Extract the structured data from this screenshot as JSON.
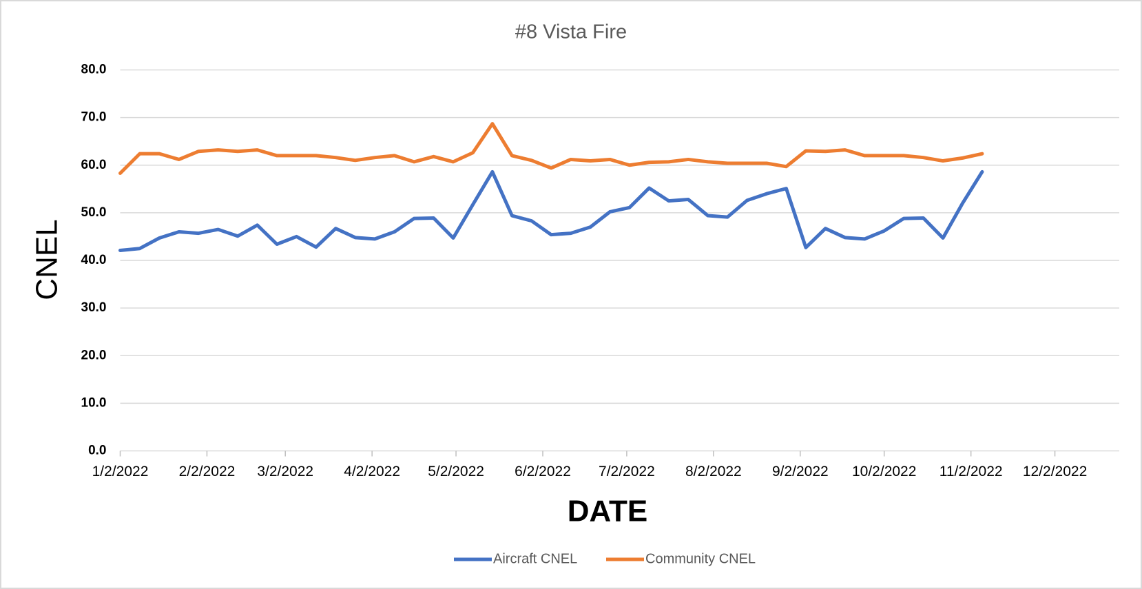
{
  "chart_data": {
    "type": "line",
    "title": "#8 Vista Fire",
    "x_label": "DATE",
    "y_label": "CNEL",
    "x": [
      "2022-01-02",
      "2022-01-09",
      "2022-01-16",
      "2022-01-23",
      "2022-01-30",
      "2022-02-06",
      "2022-02-13",
      "2022-02-20",
      "2022-02-27",
      "2022-03-06",
      "2022-03-13",
      "2022-03-20",
      "2022-03-27",
      "2022-04-03",
      "2022-04-10",
      "2022-04-17",
      "2022-04-24",
      "2022-05-01",
      "2022-05-08",
      "2022-05-15",
      "2022-05-22",
      "2022-05-29",
      "2022-06-05",
      "2022-06-12",
      "2022-06-19",
      "2022-06-26",
      "2022-07-03",
      "2022-07-10",
      "2022-07-17",
      "2022-07-24",
      "2022-07-31",
      "2022-08-07",
      "2022-08-14",
      "2022-08-21",
      "2022-08-28",
      "2022-09-04",
      "2022-09-11",
      "2022-09-18",
      "2022-09-25",
      "2022-10-02",
      "2022-10-09",
      "2022-10-16",
      "2022-10-23",
      "2022-10-30",
      "2022-11-06"
    ],
    "series": [
      {
        "name": "Aircraft CNEL",
        "color": "#4472c4",
        "values": [
          42.1,
          42.5,
          44.7,
          46.0,
          45.7,
          46.5,
          45.1,
          47.4,
          43.4,
          45.0,
          42.8,
          46.7,
          44.8,
          44.5,
          46.0,
          48.8,
          48.9,
          44.7,
          51.7,
          58.6,
          49.4,
          48.3,
          45.4,
          45.7,
          47.0,
          50.2,
          51.1,
          55.2,
          52.5,
          52.8,
          49.4,
          49.1,
          52.6,
          54.0,
          55.1,
          42.7,
          46.7,
          44.8,
          44.5,
          46.2,
          48.8,
          48.9,
          44.7,
          52.0,
          58.6
        ]
      },
      {
        "name": "Community CNEL",
        "color": "#ed7d31",
        "values": [
          58.3,
          62.4,
          62.4,
          61.2,
          62.9,
          63.2,
          62.9,
          63.2,
          62.0,
          62.0,
          62.0,
          61.6,
          61.0,
          61.6,
          62.0,
          60.7,
          61.8,
          60.7,
          62.6,
          68.7,
          62.0,
          61.0,
          59.4,
          61.2,
          60.9,
          61.2,
          60.0,
          60.6,
          60.7,
          61.2,
          60.7,
          60.4,
          60.4,
          60.4,
          59.7,
          63.0,
          62.9,
          63.2,
          62.0,
          62.0,
          62.0,
          61.6,
          60.9,
          61.5,
          62.4
        ]
      }
    ],
    "xlim": [
      "2022-01-02",
      "2022-12-25"
    ],
    "xticks": [
      {
        "value": "2022-01-02",
        "label": "1/2/2022"
      },
      {
        "value": "2022-02-02",
        "label": "2/2/2022"
      },
      {
        "value": "2022-03-02",
        "label": "3/2/2022"
      },
      {
        "value": "2022-04-02",
        "label": "4/2/2022"
      },
      {
        "value": "2022-05-02",
        "label": "5/2/2022"
      },
      {
        "value": "2022-06-02",
        "label": "6/2/2022"
      },
      {
        "value": "2022-07-02",
        "label": "7/2/2022"
      },
      {
        "value": "2022-08-02",
        "label": "8/2/2022"
      },
      {
        "value": "2022-09-02",
        "label": "9/2/2022"
      },
      {
        "value": "2022-10-02",
        "label": "10/2/2022"
      },
      {
        "value": "2022-11-02",
        "label": "11/2/2022"
      },
      {
        "value": "2022-12-02",
        "label": "12/2/2022"
      }
    ],
    "ylim": [
      0,
      80
    ],
    "yticks": [
      {
        "value": 0,
        "label": "0.0"
      },
      {
        "value": 10,
        "label": "10.0"
      },
      {
        "value": 20,
        "label": "20.0"
      },
      {
        "value": 30,
        "label": "30.0"
      },
      {
        "value": 40,
        "label": "40.0"
      },
      {
        "value": 50,
        "label": "50.0"
      },
      {
        "value": 60,
        "label": "60.0"
      },
      {
        "value": 70,
        "label": "70.0"
      },
      {
        "value": 80,
        "label": "80.0"
      }
    ],
    "grid": true,
    "legend": "bottom"
  }
}
